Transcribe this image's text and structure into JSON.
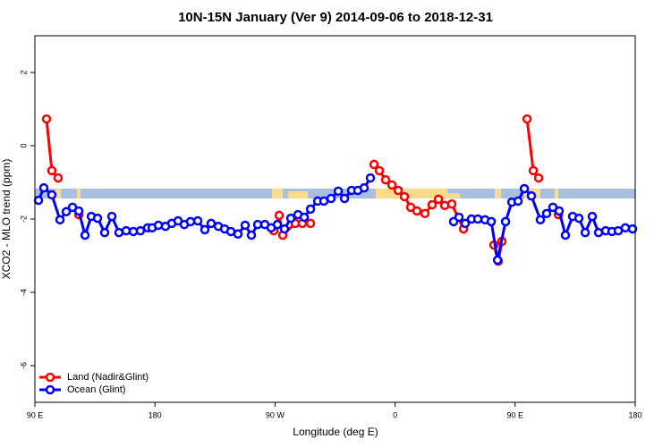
{
  "chart_data": {
    "type": "line",
    "title": "10N-15N January (Ver 9)   2014-09-06 to 2018-12-31",
    "xlabel": "Longitude (deg E)",
    "ylabel": "XCO2 - MLO trend (ppm)",
    "xlim": [
      90,
      540
    ],
    "ylim": [
      -7,
      3
    ],
    "xticks": [
      {
        "value": 90,
        "label": "90 E"
      },
      {
        "value": 180,
        "label": "180"
      },
      {
        "value": 270,
        "label": "90 W"
      },
      {
        "value": 360,
        "label": "0"
      },
      {
        "value": 450,
        "label": "90 E"
      },
      {
        "value": 540,
        "label": "180"
      }
    ],
    "yticks": [
      -6,
      -4,
      -2,
      0,
      2
    ],
    "legend": "bottom-left",
    "series": [
      {
        "name": "Land (Nadir&Glint)",
        "color": "#ff0000",
        "x": [
          98.7,
          102.7,
          107.4,
          null,
          122.9,
          null,
          269.1,
          273.1,
          275.8,
          285.2,
          290.5,
          296.6,
          null,
          344.2,
          348.2,
          352.9,
          357.6,
          362.3,
          367,
          371.7,
          376.4,
          382.4,
          387.8,
          392.5,
          397.2,
          402.5,
          411.3,
          null,
          434.1,
          437.4,
          440.1,
          null,
          458.9,
          463.6,
          467.6,
          null,
          482.4
        ],
        "values": [
          0.73,
          -0.68,
          -0.88,
          null,
          -1.88,
          null,
          -2.32,
          -1.9,
          -2.44,
          -2.12,
          -2.12,
          -2.12,
          null,
          -0.51,
          -0.68,
          -0.93,
          -1.07,
          -1.22,
          -1.39,
          -1.68,
          -1.78,
          -1.85,
          -1.61,
          -1.46,
          -1.63,
          -1.59,
          -2.27,
          null,
          -2.71,
          -3.15,
          -2.61,
          null,
          0.73,
          -0.68,
          -0.88,
          null,
          -1.88
        ]
      },
      {
        "name": "Ocean (Glint)",
        "color": "#0000ff",
        "x": [
          92.7,
          96.7,
          102.7,
          108.8,
          113.5,
          118.2,
          122.9,
          127.6,
          132.3,
          137,
          142.3,
          147.7,
          153,
          158.4,
          163.8,
          169.1,
          174.5,
          177.9,
          182.6,
          187.9,
          192.6,
          197.3,
          202,
          206.7,
          212.1,
          217.4,
          222.1,
          227.5,
          232.2,
          236.9,
          242.2,
          247.6,
          252.3,
          257,
          262.4,
          267.1,
          271.8,
          277.1,
          281.8,
          287.2,
          291.9,
          296.6,
          302,
          306.6,
          312,
          317.4,
          322.1,
          327.4,
          332.1,
          336.8,
          341.5,
          null,
          403.9,
          407.9,
          412.6,
          417.3,
          422,
          427.4,
          432.1,
          436.8,
          442.8,
          447.5,
          452.2,
          456.9,
          462.2,
          468.9,
          473.6,
          478.3,
          483,
          487.7,
          493.1,
          497.8,
          502.5,
          507.8,
          512.5,
          517.9,
          522.6,
          527.3,
          532.6,
          538
        ],
        "values": [
          -1.49,
          -1.15,
          -1.34,
          -2.02,
          -1.8,
          -1.68,
          -1.78,
          -2.44,
          -1.93,
          -1.98,
          -2.37,
          -1.93,
          -2.37,
          -2.32,
          -2.34,
          -2.32,
          -2.24,
          -2.24,
          -2.17,
          -2.2,
          -2.12,
          -2.05,
          -2.15,
          -2.07,
          -2.05,
          -2.29,
          -2.12,
          -2.2,
          -2.27,
          -2.34,
          -2.41,
          -2.17,
          -2.44,
          -2.15,
          -2.15,
          -2.24,
          -2.15,
          -2.27,
          -1.98,
          -1.88,
          -1.95,
          -1.73,
          -1.51,
          -1.51,
          -1.44,
          -1.24,
          -1.44,
          -1.22,
          -1.22,
          -1.15,
          -0.88,
          null,
          -2.07,
          -1.95,
          -2.12,
          -2.0,
          -2.0,
          -2.02,
          -2.07,
          -3.12,
          -2.07,
          -1.54,
          -1.51,
          -1.17,
          -1.37,
          -2.02,
          -1.85,
          -1.68,
          -1.78,
          -2.44,
          -1.93,
          -1.98,
          -2.37,
          -1.93,
          -2.37,
          -2.32,
          -2.34,
          -2.32,
          -2.24,
          -2.27
        ]
      }
    ]
  }
}
